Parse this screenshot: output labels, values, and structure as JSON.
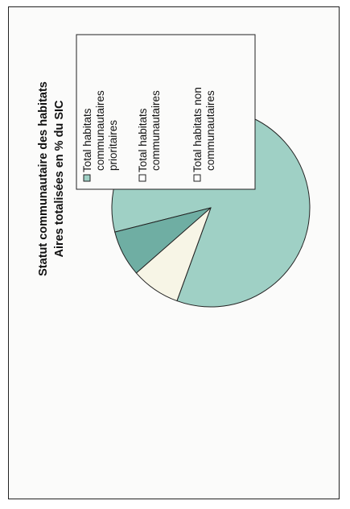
{
  "chart_data": {
    "type": "pie",
    "title": "Statut communautaire des habitats",
    "subtitle": "Aires totalisées en % du SIC",
    "slices": [
      {
        "label": "Total habitats communautaires prioritaires",
        "value": 84.5,
        "color": "#9fd0c5"
      },
      {
        "label": "Total habitats communautaires",
        "value": 7.5,
        "color": "#6faea3"
      },
      {
        "label": "Total habitats non communautaires",
        "value": 8.0,
        "color": "#f7f5e6"
      }
    ],
    "legend": [
      {
        "line1": "Total habitats",
        "line2": "communautaires",
        "line3": "prioritaires",
        "color": "#9fd0c5"
      },
      {
        "line1": "Total habitats",
        "line2": "communautaires",
        "line3": "",
        "color": "#ffffff"
      },
      {
        "line1": "Total habitats non",
        "line2": "communautaires",
        "line3": "",
        "color": "#ffffff"
      }
    ],
    "legend_position": "right",
    "orientation": "rotated"
  }
}
